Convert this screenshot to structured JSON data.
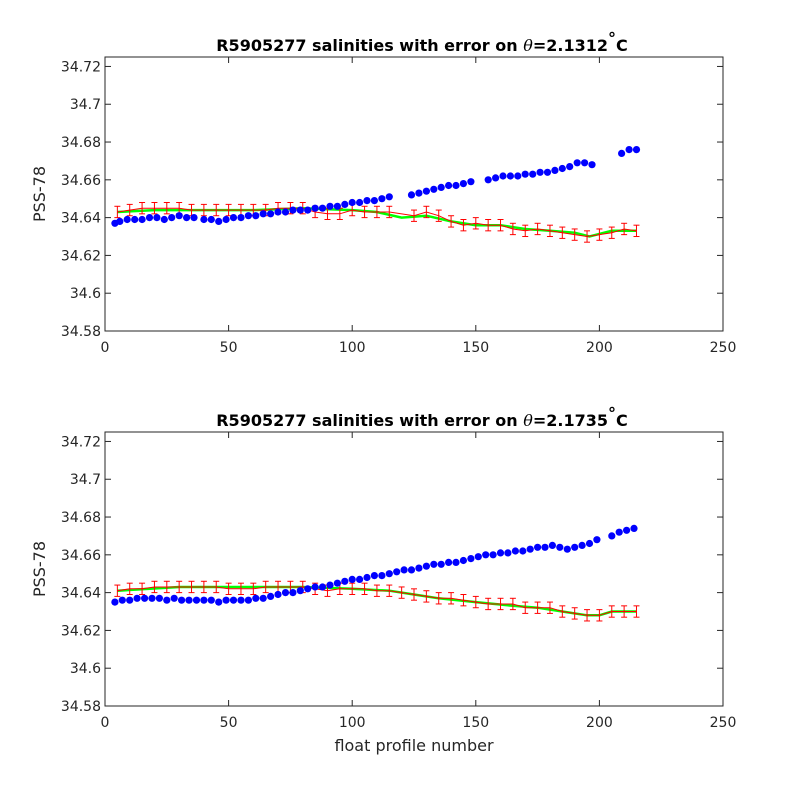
{
  "chart_data": [
    {
      "type": "line",
      "title_prefix": "R5905277 salinities with error on ",
      "title_symbol": "θ",
      "title_value": "=2.1312",
      "title_degree": "°",
      "title_unit": "C",
      "ylabel": "PSS-78",
      "xlabel": "",
      "xlim": [
        0,
        250
      ],
      "ylim": [
        34.58,
        34.725
      ],
      "xticks": [
        0,
        50,
        100,
        150,
        200,
        250
      ],
      "xtick_labels": [
        "0",
        "50",
        "100",
        "150",
        "200",
        "250"
      ],
      "yticks": [
        34.58,
        34.6,
        34.62,
        34.64,
        34.66,
        34.68,
        34.7,
        34.72
      ],
      "ytick_labels": [
        "34.58",
        "34.6",
        "34.62",
        "34.64",
        "34.66",
        "34.68",
        "34.7",
        "34.72"
      ],
      "grid": false,
      "colors": {
        "measured": "#0000ff",
        "calibrated": "#ff0000",
        "mapped": "#00ff00",
        "errorbar": "#ff0000"
      },
      "series": [
        {
          "role": "measured",
          "x": [
            4,
            6,
            9,
            12,
            15,
            18,
            21,
            24,
            27,
            30,
            33,
            36,
            40,
            43,
            46,
            49,
            52,
            55,
            58,
            61,
            64,
            67,
            70,
            73,
            76,
            79,
            82,
            85,
            88,
            91,
            94,
            97,
            100,
            103,
            106,
            109,
            112,
            115,
            124,
            127,
            130,
            133,
            136,
            139,
            142,
            145,
            148,
            155,
            158,
            161,
            164,
            167,
            170,
            173,
            176,
            179,
            182,
            185,
            188,
            191,
            194,
            197,
            209,
            212,
            215
          ],
          "y": [
            34.637,
            34.638,
            34.639,
            34.639,
            34.639,
            34.64,
            34.64,
            34.639,
            34.64,
            34.641,
            34.64,
            34.64,
            34.639,
            34.639,
            34.638,
            34.639,
            34.64,
            34.64,
            34.641,
            34.641,
            34.642,
            34.642,
            34.643,
            34.643,
            34.644,
            34.644,
            34.644,
            34.645,
            34.645,
            34.646,
            34.646,
            34.647,
            34.648,
            34.648,
            34.649,
            34.649,
            34.65,
            34.651,
            34.652,
            34.653,
            34.654,
            34.655,
            34.656,
            34.657,
            34.657,
            34.658,
            34.659,
            34.66,
            34.661,
            34.662,
            34.662,
            34.662,
            34.663,
            34.663,
            34.664,
            34.664,
            34.665,
            34.666,
            34.667,
            34.669,
            34.669,
            34.668,
            34.674,
            34.676,
            34.676
          ]
        },
        {
          "role": "calibrated",
          "x": [
            5,
            10,
            15,
            20,
            25,
            30,
            35,
            40,
            45,
            50,
            55,
            60,
            65,
            70,
            75,
            80,
            85,
            90,
            95,
            100,
            105,
            110,
            115,
            125,
            130,
            135,
            140,
            145,
            150,
            155,
            160,
            165,
            170,
            175,
            180,
            185,
            190,
            195,
            200,
            205,
            210,
            215
          ],
          "y": [
            34.643,
            34.644,
            34.645,
            34.645,
            34.645,
            34.645,
            34.644,
            34.644,
            34.644,
            34.644,
            34.644,
            34.644,
            34.644,
            34.645,
            34.645,
            34.645,
            34.643,
            34.642,
            34.642,
            34.644,
            34.643,
            34.643,
            34.643,
            34.641,
            34.643,
            34.641,
            34.638,
            34.636,
            34.637,
            34.636,
            34.636,
            34.634,
            34.633,
            34.634,
            34.633,
            34.632,
            34.631,
            34.63,
            34.631,
            34.632,
            34.634,
            34.633
          ],
          "err": 0.003
        },
        {
          "role": "mapped",
          "x": [
            5,
            20,
            40,
            60,
            80,
            100,
            110,
            120,
            130,
            140,
            150,
            160,
            170,
            180,
            190,
            196,
            205,
            215
          ],
          "y": [
            34.643,
            34.644,
            34.644,
            34.644,
            34.645,
            34.644,
            34.643,
            34.64,
            34.641,
            34.638,
            34.636,
            34.636,
            34.634,
            34.633,
            34.632,
            34.63,
            34.633,
            34.633
          ]
        }
      ]
    },
    {
      "type": "line",
      "title_prefix": "R5905277 salinities with error on ",
      "title_symbol": "θ",
      "title_value": "=2.1735",
      "title_degree": "°",
      "title_unit": "C",
      "ylabel": "PSS-78",
      "xlabel": "float profile number",
      "xlim": [
        0,
        250
      ],
      "ylim": [
        34.58,
        34.725
      ],
      "xticks": [
        0,
        50,
        100,
        150,
        200,
        250
      ],
      "xtick_labels": [
        "0",
        "50",
        "100",
        "150",
        "200",
        "250"
      ],
      "yticks": [
        34.58,
        34.6,
        34.62,
        34.64,
        34.66,
        34.68,
        34.7,
        34.72
      ],
      "ytick_labels": [
        "34.58",
        "34.6",
        "34.62",
        "34.64",
        "34.66",
        "34.68",
        "34.7",
        "34.72"
      ],
      "grid": false,
      "colors": {
        "measured": "#0000ff",
        "calibrated": "#ff0000",
        "mapped": "#00ff00",
        "errorbar": "#ff0000"
      },
      "series": [
        {
          "role": "measured",
          "x": [
            4,
            7,
            10,
            13,
            16,
            19,
            22,
            25,
            28,
            31,
            34,
            37,
            40,
            43,
            46,
            49,
            52,
            55,
            58,
            61,
            64,
            67,
            70,
            73,
            76,
            79,
            82,
            85,
            88,
            91,
            94,
            97,
            100,
            103,
            106,
            109,
            112,
            115,
            118,
            121,
            124,
            127,
            130,
            133,
            136,
            139,
            142,
            145,
            148,
            151,
            154,
            157,
            160,
            163,
            166,
            169,
            172,
            175,
            178,
            181,
            184,
            187,
            190,
            193,
            196,
            199,
            205,
            208,
            211,
            214
          ],
          "y": [
            34.635,
            34.636,
            34.636,
            34.637,
            34.637,
            34.637,
            34.637,
            34.636,
            34.637,
            34.636,
            34.636,
            34.636,
            34.636,
            34.636,
            34.635,
            34.636,
            34.636,
            34.636,
            34.636,
            34.637,
            34.637,
            34.638,
            34.639,
            34.64,
            34.64,
            34.641,
            34.642,
            34.643,
            34.643,
            34.644,
            34.645,
            34.646,
            34.647,
            34.647,
            34.648,
            34.649,
            34.649,
            34.65,
            34.651,
            34.652,
            34.652,
            34.653,
            34.654,
            34.655,
            34.655,
            34.656,
            34.656,
            34.657,
            34.658,
            34.659,
            34.66,
            34.66,
            34.661,
            34.661,
            34.662,
            34.662,
            34.663,
            34.664,
            34.664,
            34.665,
            34.664,
            34.663,
            34.664,
            34.665,
            34.666,
            34.668,
            34.67,
            34.672,
            34.673,
            34.674
          ]
        },
        {
          "role": "calibrated",
          "x": [
            5,
            10,
            15,
            20,
            25,
            30,
            35,
            40,
            45,
            50,
            55,
            60,
            65,
            70,
            75,
            80,
            85,
            90,
            95,
            100,
            105,
            110,
            115,
            120,
            125,
            130,
            135,
            140,
            145,
            150,
            155,
            160,
            165,
            170,
            175,
            180,
            185,
            190,
            195,
            200,
            205,
            210,
            215
          ],
          "y": [
            34.641,
            34.642,
            34.642,
            34.643,
            34.643,
            34.643,
            34.643,
            34.643,
            34.643,
            34.642,
            34.642,
            34.642,
            34.643,
            34.643,
            34.643,
            34.643,
            34.642,
            34.641,
            34.642,
            34.642,
            34.642,
            34.641,
            34.641,
            34.64,
            34.639,
            34.638,
            34.637,
            34.637,
            34.636,
            34.635,
            34.634,
            34.634,
            34.634,
            34.632,
            34.632,
            34.632,
            34.63,
            34.629,
            34.628,
            34.628,
            34.63,
            34.63,
            34.63
          ],
          "err": 0.003
        },
        {
          "role": "mapped",
          "x": [
            5,
            30,
            60,
            80,
            100,
            115,
            125,
            135,
            150,
            165,
            175,
            185,
            195,
            200,
            205,
            215
          ],
          "y": [
            34.641,
            34.643,
            34.643,
            34.643,
            34.642,
            34.641,
            34.639,
            34.637,
            34.635,
            34.633,
            34.632,
            34.63,
            34.628,
            34.628,
            34.63,
            34.63
          ]
        }
      ]
    }
  ]
}
